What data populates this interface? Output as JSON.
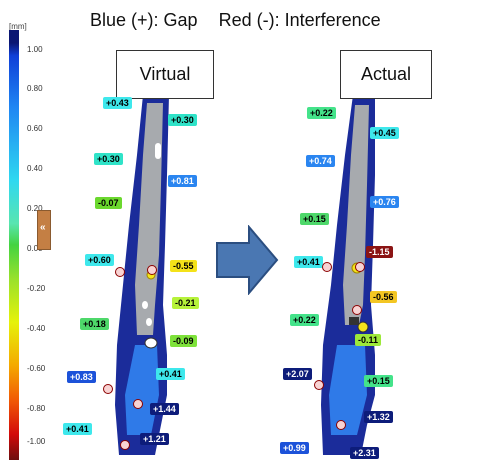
{
  "title": {
    "gap": "Blue (+): Gap",
    "interference": "Red (-): Interference"
  },
  "scale": {
    "unit": "[mm]",
    "ticks": [
      "1.00",
      "0.80",
      "0.60",
      "0.40",
      "0.20",
      "0.00",
      "-0.20",
      "-0.40",
      "-0.60",
      "-0.80",
      "-1.00"
    ],
    "tab_glyph": "«"
  },
  "panels": {
    "virtual": "Virtual",
    "actual": "Actual"
  },
  "virtual_labels": [
    "+0.43",
    "+0.30",
    "+0.30",
    "+0.81",
    "-0.07",
    "+0.60",
    "-0.55",
    "-0.21",
    "+0.18",
    "-0.09",
    "+0.41",
    "+0.83",
    "+1.44",
    "+0.41",
    "+1.21"
  ],
  "actual_labels": [
    "+0.22",
    "+0.45",
    "+0.74",
    "+0.76",
    "+0.15",
    "+0.41",
    "-1.15",
    "-0.56",
    "+0.22",
    "-0.11",
    "+2.07",
    "+0.15",
    "+1.32",
    "+0.99",
    "+2.31"
  ],
  "colors": {
    "model_gray": "#a7aaae",
    "model_blue": "#1b2c9a"
  }
}
